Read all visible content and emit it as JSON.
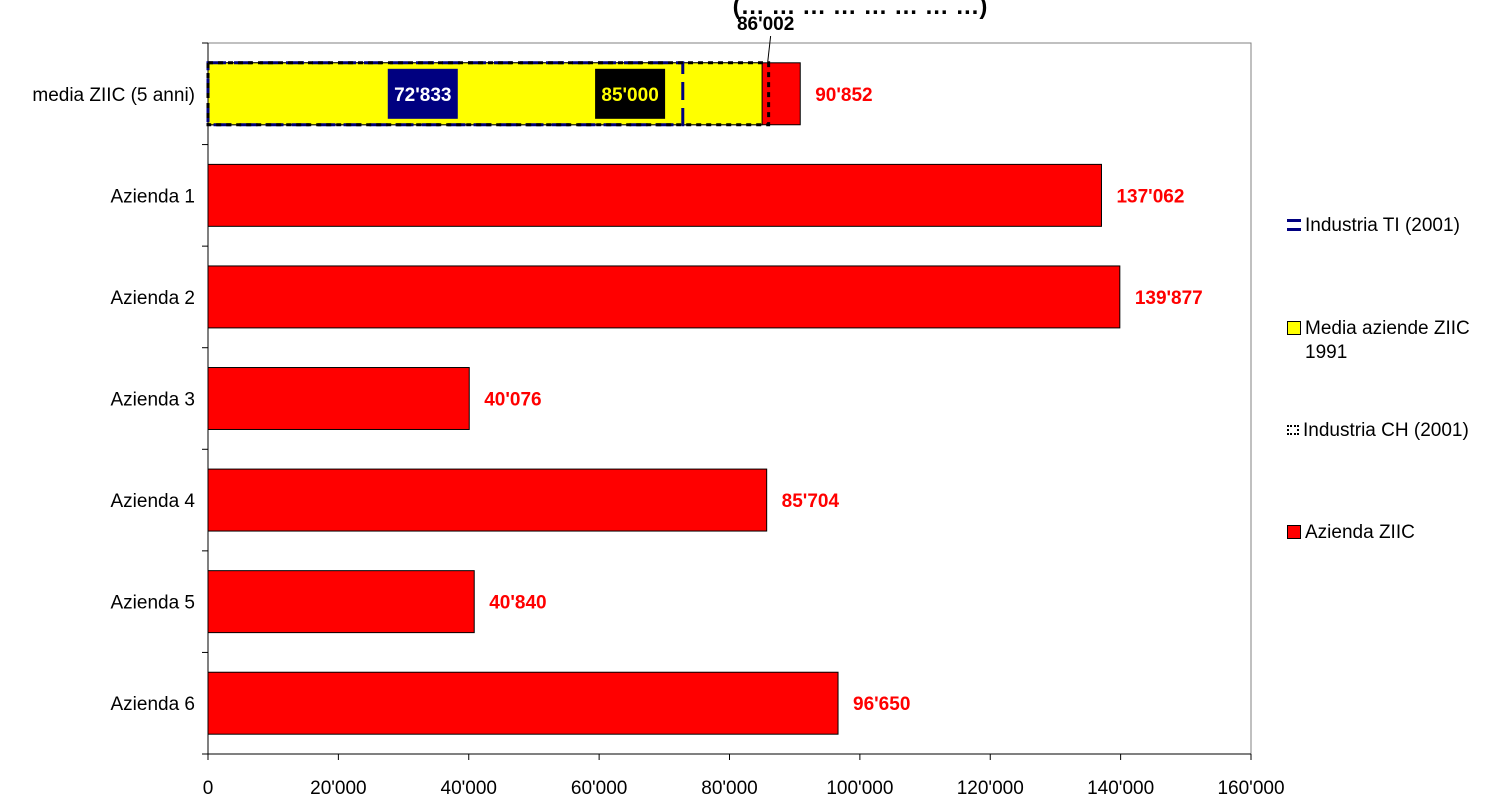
{
  "chart_data": {
    "type": "bar",
    "orientation": "horizontal",
    "title": "(… … … … … … … …)",
    "categories": [
      "media ZIIC (5 anni)",
      "Azienda 1",
      "Azienda 2",
      "Azienda 3",
      "Azienda 4",
      "Azienda 5",
      "Azienda 6"
    ],
    "series": [
      {
        "name": "Azienda ZIIC",
        "color": "#ff0000",
        "values": [
          90852,
          137062,
          139877,
          40076,
          85704,
          40840,
          96650
        ],
        "labels": [
          "90'852",
          "137'062",
          "139'877",
          "40'076",
          "85'704",
          "40'840",
          "96'650"
        ]
      },
      {
        "name": "Media aziende ZIIC 1991",
        "color": "#ffff00",
        "values": [
          85000,
          null,
          null,
          null,
          null,
          null,
          null
        ],
        "labels": [
          "85'000"
        ]
      },
      {
        "name": "Industria TI (2001)",
        "color": "#000080",
        "values": [
          72833,
          null,
          null,
          null,
          null,
          null,
          null
        ],
        "labels": [
          "72'833"
        ]
      },
      {
        "name": "Industria CH (2001)",
        "color": "#000000",
        "values": [
          86002,
          null,
          null,
          null,
          null,
          null,
          null
        ],
        "labels": [
          "86'002"
        ]
      }
    ],
    "legend_order": [
      {
        "name": "Industria TI (2001)",
        "swatch": "dash-navy"
      },
      {
        "name": "Media aziende ZIIC 1991",
        "swatch": "yellow"
      },
      {
        "name": "Industria CH (2001)",
        "swatch": "dot-black"
      },
      {
        "name": "Azienda ZIIC",
        "swatch": "red"
      }
    ],
    "xlim": [
      0,
      160000
    ],
    "xticks": [
      0,
      20000,
      40000,
      60000,
      80000,
      100000,
      120000,
      140000,
      160000
    ],
    "xtick_labels": [
      "0",
      "20'000",
      "40'000",
      "60'000",
      "80'000",
      "100'000",
      "120'000",
      "140'000",
      "160'000"
    ],
    "xlabel": "",
    "ylabel": "",
    "grid": false,
    "legend_position": "right"
  }
}
